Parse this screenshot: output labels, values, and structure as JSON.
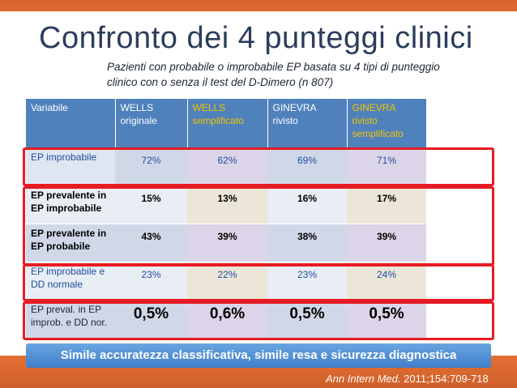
{
  "title": "Confronto dei 4 punteggi clinici",
  "subtitle": "Pazienti con probabile o improbabile EP basata su 4 tipi di punteggio clinico con o senza il test del D-Dimero (n  807)",
  "table": {
    "headers": [
      "Variabile",
      "WELLS originale",
      "WELLS semplificato",
      "GINEVRA rivisto",
      "GINEVRA rivisto semplificato"
    ],
    "rows": [
      {
        "label": "EP improbabile",
        "values": [
          "72%",
          "62%",
          "69%",
          "71%"
        ]
      },
      {
        "label": "EP prevalente in EP improbabile",
        "values": [
          "15%",
          "13%",
          "16%",
          "17%"
        ]
      },
      {
        "label": "EP prevalente in EP probabile",
        "values": [
          "43%",
          "39%",
          "38%",
          "39%"
        ]
      },
      {
        "label": "EP improbabile e DD normale",
        "values": [
          "23%",
          "22%",
          "23%",
          "24%"
        ]
      },
      {
        "label": "EP preval. in EP improb. e DD nor.",
        "values": [
          "0,5%",
          "0,6%",
          "0,5%",
          "0,5%"
        ]
      }
    ]
  },
  "banner": "Simile accuratezza classificativa, simile resa e sicurezza diagnostica",
  "citation": {
    "journal": "Ann Intern Med.",
    "ref": " 2011;154:709-718"
  },
  "colors": {
    "header_blue": "#4f81bd",
    "highlight_red": "#e61b23",
    "accent_yellow": "#f2c400",
    "orange": "#e36f33"
  }
}
